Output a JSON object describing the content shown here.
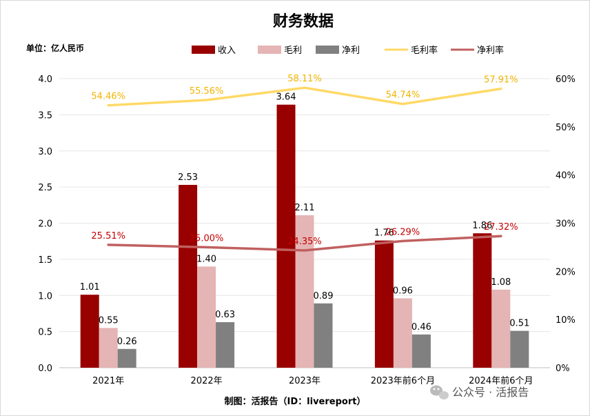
{
  "unit_label": "单位：亿人民币",
  "caption": "制图：活报告（ID：livereport）",
  "watermark": "公众号 · 活报告",
  "chart_data": {
    "type": "bar",
    "title": "财务数据",
    "categories": [
      "2021年",
      "2022年",
      "2023年",
      "2023年前6个月",
      "2024年前6个月"
    ],
    "series": [
      {
        "name": "收入",
        "type": "bar",
        "color": "#990000",
        "values": [
          1.01,
          2.53,
          3.64,
          1.76,
          1.86
        ],
        "labels": [
          "1.01",
          "2.53",
          "3.64",
          "1.76",
          "1.86"
        ]
      },
      {
        "name": "毛利",
        "type": "bar",
        "color": "#e5b4b4",
        "values": [
          0.55,
          1.4,
          2.11,
          0.96,
          1.08
        ],
        "labels": [
          "0.55",
          "1.40",
          "2.11",
          "0.96",
          "1.08"
        ]
      },
      {
        "name": "净利",
        "type": "bar",
        "color": "#808080",
        "values": [
          0.26,
          0.63,
          0.89,
          0.46,
          0.51
        ],
        "labels": [
          "0.26",
          "0.63",
          "0.89",
          "0.46",
          "0.51"
        ]
      },
      {
        "name": "毛利率",
        "type": "line",
        "axis": "right",
        "color": "#ffd966",
        "values": [
          54.46,
          55.56,
          58.11,
          54.74,
          57.91
        ],
        "labels": [
          "54.46%",
          "55.56%",
          "58.11%",
          "54.74%",
          "57.91%"
        ]
      },
      {
        "name": "净利率",
        "type": "line",
        "axis": "right",
        "color": "#c0605f",
        "values": [
          25.51,
          25.0,
          24.35,
          26.29,
          27.32
        ],
        "labels": [
          "25.51%",
          "25.00%",
          "24.35%",
          "26.29%",
          "27.32%"
        ]
      }
    ],
    "y_left": {
      "ylim": [
        0,
        4.0
      ],
      "ticks": [
        "0.0",
        "0.5",
        "1.0",
        "1.5",
        "2.0",
        "2.5",
        "3.0",
        "3.5",
        "4.0"
      ]
    },
    "y_right": {
      "ylim": [
        0,
        60
      ],
      "ticks": [
        "0%",
        "10%",
        "20%",
        "30%",
        "40%",
        "50%",
        "60%"
      ]
    },
    "grid": true,
    "legend_position": "top"
  }
}
